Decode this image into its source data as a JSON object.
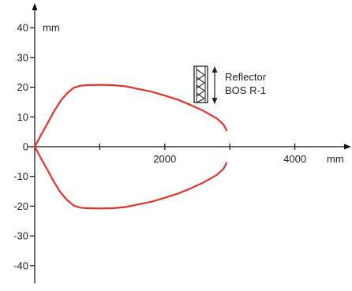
{
  "chart_data": {
    "type": "line",
    "xlabel": "mm",
    "ylabel": "mm",
    "xlim": [
      -100,
      4800
    ],
    "ylim": [
      -46,
      48
    ],
    "x_ticks": [
      {
        "value": 0,
        "label": ""
      },
      {
        "value": 1000,
        "label": ""
      },
      {
        "value": 2000,
        "label": "2000"
      },
      {
        "value": 3000,
        "label": ""
      },
      {
        "value": 4000,
        "label": "4000"
      }
    ],
    "y_ticks": [
      {
        "value": 40,
        "label": "40"
      },
      {
        "value": 30,
        "label": "30"
      },
      {
        "value": 20,
        "label": "20"
      },
      {
        "value": 10,
        "label": "10"
      },
      {
        "value": 0,
        "label": "0"
      },
      {
        "value": -10,
        "label": "-10"
      },
      {
        "value": -20,
        "label": "-20"
      },
      {
        "value": -30,
        "label": "-30"
      },
      {
        "value": -40,
        "label": "-40"
      }
    ],
    "grid": false,
    "legend": "none",
    "series": [
      {
        "color": "#e0342f",
        "x": [
          0,
          100,
          200,
          300,
          400,
          500,
          600,
          700,
          800,
          1000,
          1200,
          1400,
          1600,
          1800,
          2000,
          2200,
          2400,
          2600,
          2800,
          2900,
          2950
        ],
        "y": [
          0,
          4.0,
          8.0,
          12.0,
          15.5,
          18.0,
          19.8,
          20.5,
          20.7,
          20.8,
          20.7,
          20.3,
          19.4,
          18.5,
          17.2,
          15.8,
          14.0,
          12.0,
          9.5,
          7.5,
          5.5
        ]
      },
      {
        "color": "#e0342f",
        "x": [
          0,
          100,
          200,
          300,
          400,
          500,
          600,
          700,
          800,
          1000,
          1200,
          1400,
          1600,
          1800,
          2000,
          2200,
          2400,
          2600,
          2800,
          2900,
          2950
        ],
        "y": [
          0,
          -4.0,
          -8.0,
          -12.0,
          -15.5,
          -18.0,
          -19.8,
          -20.5,
          -20.7,
          -20.8,
          -20.7,
          -20.3,
          -19.4,
          -18.5,
          -17.2,
          -15.8,
          -14.0,
          -12.0,
          -9.5,
          -7.5,
          -5.5
        ]
      }
    ],
    "annotation": {
      "lines": [
        "Reflector",
        "BOS R-1"
      ],
      "icon": "reflector-icon"
    },
    "colors": {
      "axis": "#111111",
      "curve": "#e0342f"
    }
  }
}
